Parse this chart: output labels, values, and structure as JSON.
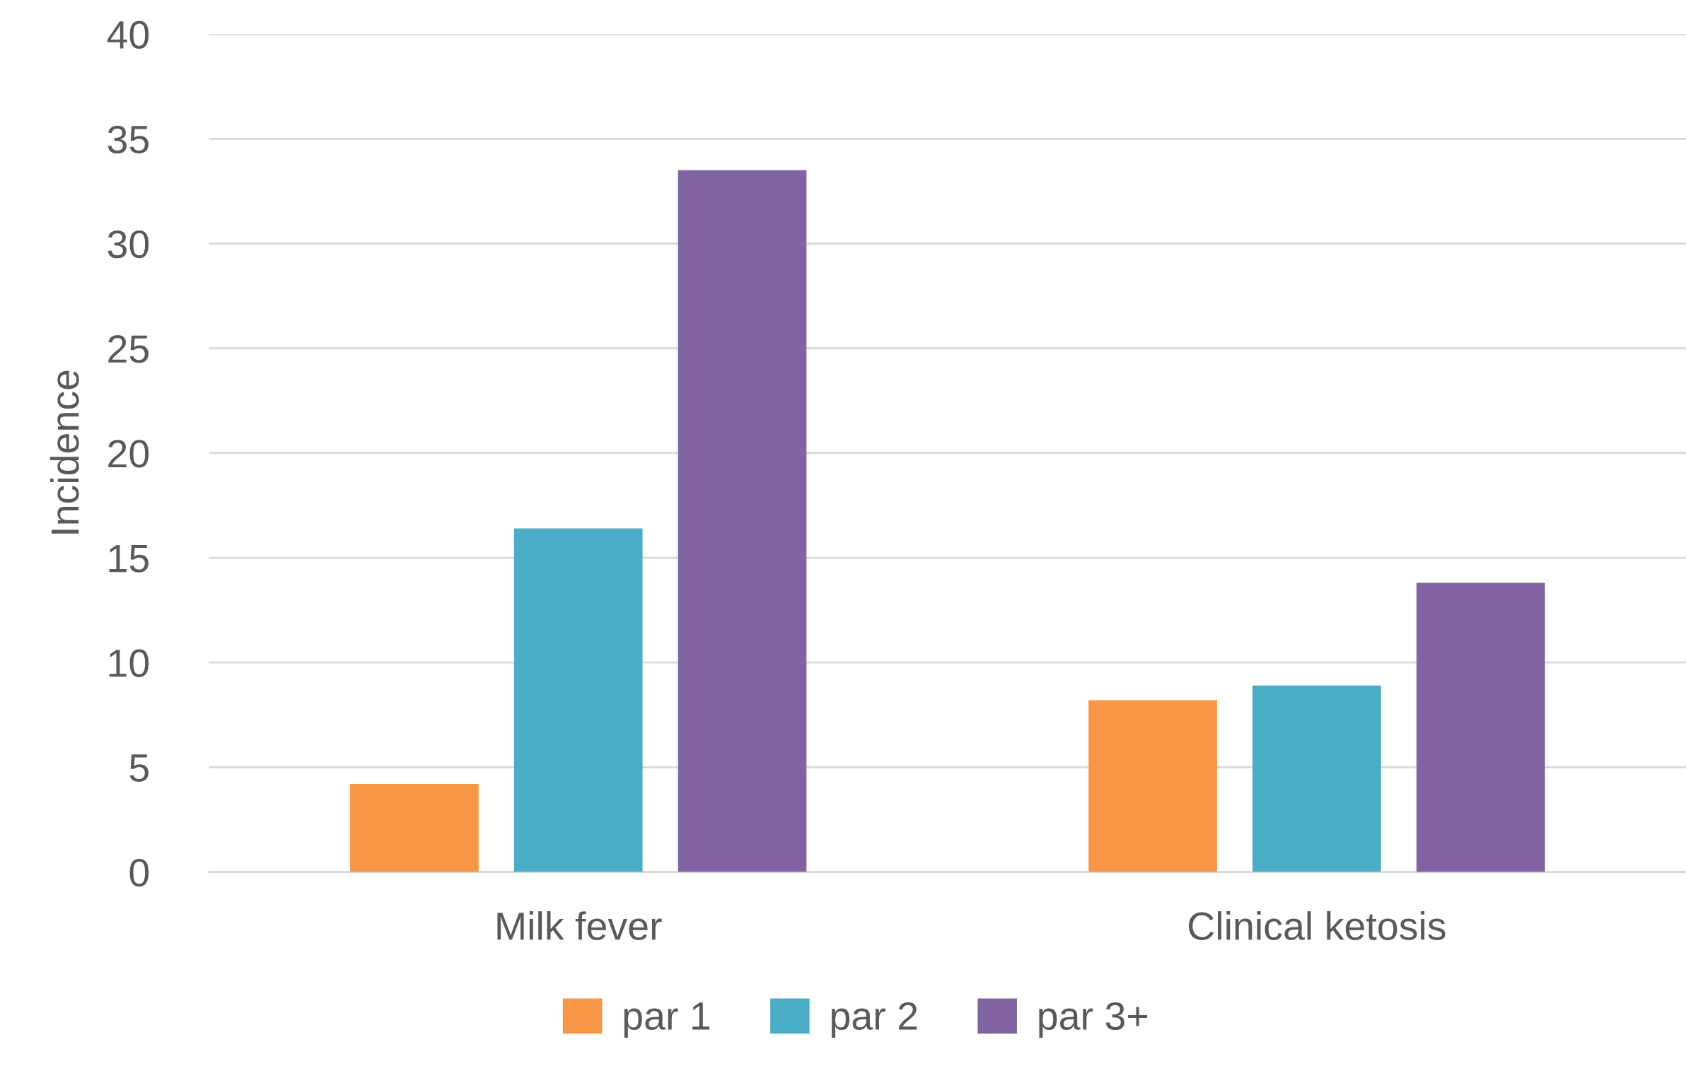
{
  "chart_data": {
    "type": "bar",
    "ylabel": "Incidence",
    "categories": [
      "Milk fever",
      "Clinical ketosis"
    ],
    "series": [
      {
        "name": "par 1",
        "color": "#f79646",
        "values": [
          4.2,
          8.2
        ]
      },
      {
        "name": "par 2",
        "color": "#4bacc6",
        "values": [
          16.4,
          8.9
        ]
      },
      {
        "name": "par 3+",
        "color": "#8064a2",
        "values": [
          33.5,
          13.8
        ]
      }
    ],
    "ylim": [
      0,
      40
    ],
    "yticks": [
      0,
      5,
      10,
      15,
      20,
      25,
      30,
      35,
      40
    ],
    "grid": "y",
    "legend": "bottom"
  }
}
